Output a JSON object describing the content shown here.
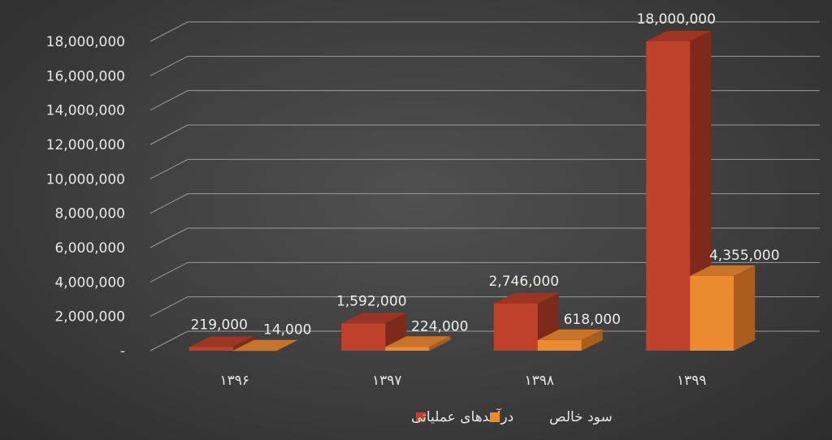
{
  "chart_data": {
    "type": "bar",
    "categories": [
      "۱۳۹۶",
      "۱۳۹۷",
      "۱۳۹۸",
      "۱۳۹۹"
    ],
    "series": [
      {
        "name": "درآمدهای عملیاتی",
        "values": [
          219000,
          1592000,
          2746000,
          18000000
        ],
        "labels": [
          "219,000",
          "1,592,000",
          "2,746,000",
          "18,000,000"
        ]
      },
      {
        "name": "سود خالص",
        "values": [
          14000,
          224000,
          618000,
          4355000
        ],
        "labels": [
          "14,000",
          "224,000",
          "618,000",
          "4,355,000"
        ]
      }
    ],
    "yticks": [
      {
        "value": 0,
        "label": "-"
      },
      {
        "value": 2000000,
        "label": "2,000,000"
      },
      {
        "value": 4000000,
        "label": "4,000,000"
      },
      {
        "value": 6000000,
        "label": "6,000,000"
      },
      {
        "value": 8000000,
        "label": "8,000,000"
      },
      {
        "value": 10000000,
        "label": "10,000,000"
      },
      {
        "value": 12000000,
        "label": "12,000,000"
      },
      {
        "value": 14000000,
        "label": "14,000,000"
      },
      {
        "value": 16000000,
        "label": "16,000,000"
      },
      {
        "value": 18000000,
        "label": "18,000,000"
      }
    ],
    "ylim": [
      0,
      18000000
    ],
    "grid": true,
    "style": "3d-clustered-column",
    "legend_position": "bottom",
    "colors": {
      "series0_front": "#c0412a",
      "series0_side": "#7e2a1b",
      "series0_top": "#9a3522",
      "series1_front": "#ec8a30",
      "series1_side": "#a85d1c",
      "series1_top": "#c87327",
      "grid": "#9a9a9a",
      "text": "#e6e6e6"
    }
  }
}
